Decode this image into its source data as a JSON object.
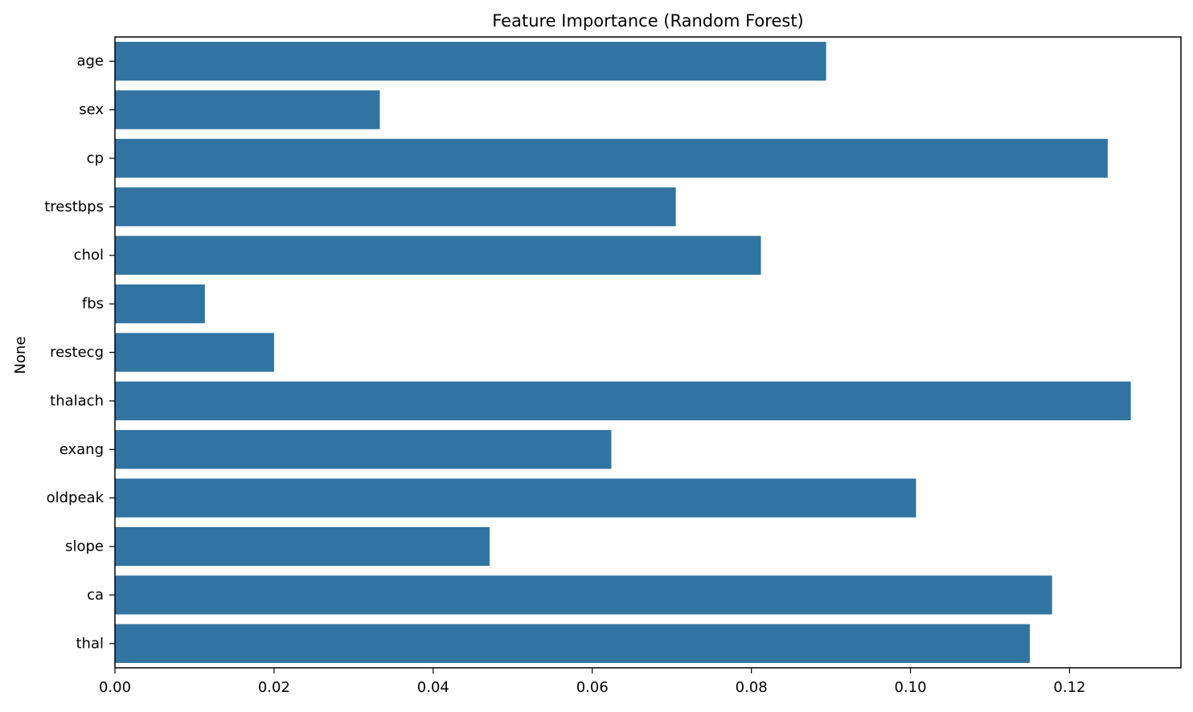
{
  "chart_data": {
    "type": "bar",
    "orientation": "horizontal",
    "title": "Feature Importance (Random Forest)",
    "xlabel": "",
    "ylabel": "None",
    "categories": [
      "age",
      "sex",
      "cp",
      "trestbps",
      "chol",
      "fbs",
      "restecg",
      "thalach",
      "exang",
      "oldpeak",
      "slope",
      "ca",
      "thal"
    ],
    "values": [
      0.0894,
      0.0333,
      0.1248,
      0.0705,
      0.0812,
      0.0113,
      0.02,
      0.1277,
      0.0624,
      0.1007,
      0.0471,
      0.1178,
      0.115
    ],
    "xlim": [
      0,
      0.134
    ],
    "xticks": [
      0.0,
      0.02,
      0.04,
      0.06,
      0.08,
      0.1,
      0.12
    ],
    "xtick_labels": [
      "0.00",
      "0.02",
      "0.04",
      "0.06",
      "0.08",
      "0.10",
      "0.12"
    ],
    "grid": false,
    "bar_color": "#3274a1"
  }
}
